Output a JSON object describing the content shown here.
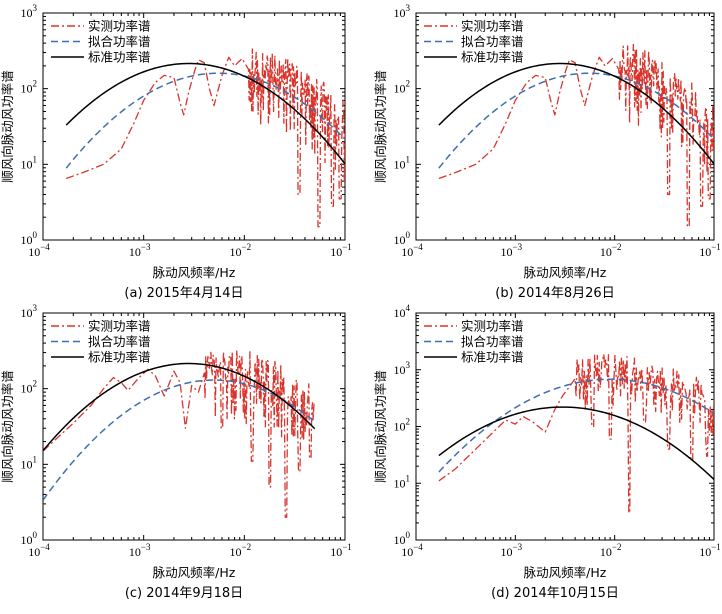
{
  "chart_data": [
    {
      "type": "line",
      "caption": "(a) 2015年4月14日",
      "xlabel": "脉动风频率/Hz",
      "ylabel": "顺风向脉动风功率谱",
      "xscale": "log",
      "yscale": "log",
      "xlim": [
        0.0001,
        0.1
      ],
      "ylim": [
        1,
        1000
      ],
      "xticks": [
        {
          "label_base": "10",
          "label_exp": "−4"
        },
        {
          "label_base": "10",
          "label_exp": "−3"
        },
        {
          "label_base": "10",
          "label_exp": "−2"
        },
        {
          "label_base": "10",
          "label_exp": "−1"
        }
      ],
      "yticks": [
        {
          "label_base": "10",
          "label_exp": "0"
        },
        {
          "label_base": "10",
          "label_exp": "1"
        },
        {
          "label_base": "10",
          "label_exp": "2"
        },
        {
          "label_base": "10",
          "label_exp": "3"
        }
      ],
      "legend_position": "top-left",
      "series": [
        {
          "name": "实测功率谱",
          "style": "dashdot",
          "color": "#d9342b",
          "kind": "measured",
          "points": [
            [
              0.00017,
              6.5
            ],
            [
              0.00025,
              7.8
            ],
            [
              0.0004,
              10
            ],
            [
              0.0006,
              16
            ],
            [
              0.0008,
              35
            ],
            [
              0.001,
              70
            ],
            [
              0.0013,
              120
            ],
            [
              0.0016,
              150
            ],
            [
              0.002,
              140
            ],
            [
              0.0023,
              65
            ],
            [
              0.0025,
              45
            ],
            [
              0.0028,
              90
            ],
            [
              0.0032,
              170
            ],
            [
              0.0035,
              240
            ],
            [
              0.004,
              220
            ],
            [
              0.0045,
              100
            ],
            [
              0.005,
              60
            ],
            [
              0.006,
              150
            ],
            [
              0.007,
              260
            ],
            [
              0.008,
              200
            ],
            [
              0.0095,
              250
            ],
            [
              0.011,
              180
            ]
          ],
          "noise": {
            "fmin": 0.011,
            "fmax": 0.1,
            "center": "fitted",
            "spread": 1.1,
            "mins": [
              [
                0.035,
                4
              ],
              [
                0.055,
                1.5
              ],
              [
                0.075,
                2.8
              ],
              [
                0.09,
                3.5
              ]
            ]
          }
        },
        {
          "name": "拟合功率谱",
          "style": "dashed",
          "color": "#3d6fb0",
          "kind": "model",
          "peak_f": 0.0055,
          "peak_s": 160,
          "k": 0.55
        },
        {
          "name": "标准功率谱",
          "style": "solid",
          "color": "#000000",
          "kind": "model",
          "peak_f": 0.0028,
          "peak_s": 215,
          "k": 0.55
        }
      ]
    },
    {
      "type": "line",
      "caption": "(b) 2014年8月26日",
      "xlabel": "脉动风频率/Hz",
      "ylabel": "顺风向脉动风功率谱",
      "xscale": "log",
      "yscale": "log",
      "xlim": [
        0.0001,
        0.1
      ],
      "ylim": [
        1,
        1000
      ],
      "xticks": [
        {
          "label_base": "10",
          "label_exp": "−4"
        },
        {
          "label_base": "10",
          "label_exp": "−3"
        },
        {
          "label_base": "10",
          "label_exp": "−2"
        },
        {
          "label_base": "10",
          "label_exp": "−1"
        }
      ],
      "yticks": [
        {
          "label_base": "10",
          "label_exp": "0"
        },
        {
          "label_base": "10",
          "label_exp": "1"
        },
        {
          "label_base": "10",
          "label_exp": "2"
        },
        {
          "label_base": "10",
          "label_exp": "3"
        }
      ],
      "legend_position": "top-left",
      "series": [
        {
          "name": "实测功率谱",
          "style": "dashdot",
          "color": "#d9342b",
          "kind": "measured",
          "points": [
            [
              0.00017,
              6.5
            ],
            [
              0.00025,
              7.8
            ],
            [
              0.0004,
              10
            ],
            [
              0.0006,
              16
            ],
            [
              0.0008,
              35
            ],
            [
              0.001,
              70
            ],
            [
              0.0013,
              120
            ],
            [
              0.0016,
              150
            ],
            [
              0.002,
              140
            ],
            [
              0.0023,
              65
            ],
            [
              0.0025,
              45
            ],
            [
              0.0028,
              90
            ],
            [
              0.0032,
              170
            ],
            [
              0.0035,
              240
            ],
            [
              0.004,
              220
            ],
            [
              0.0045,
              100
            ],
            [
              0.005,
              60
            ],
            [
              0.006,
              150
            ],
            [
              0.007,
              260
            ],
            [
              0.008,
              200
            ],
            [
              0.0095,
              250
            ],
            [
              0.011,
              180
            ]
          ],
          "noise": {
            "fmin": 0.011,
            "fmax": 0.1,
            "center": "fitted",
            "spread": 1.1,
            "mins": [
              [
                0.035,
                4
              ],
              [
                0.055,
                1.5
              ],
              [
                0.075,
                2.8
              ],
              [
                0.09,
                3.5
              ]
            ]
          }
        },
        {
          "name": "拟合功率谱",
          "style": "dashed",
          "color": "#3d6fb0",
          "kind": "model",
          "peak_f": 0.0055,
          "peak_s": 160,
          "k": 0.55
        },
        {
          "name": "标准功率谱",
          "style": "solid",
          "color": "#000000",
          "kind": "model",
          "peak_f": 0.0028,
          "peak_s": 215,
          "k": 0.55
        }
      ]
    },
    {
      "type": "line",
      "caption": "(c) 2014年9月18日",
      "xlabel": "脉动风频率/Hz",
      "ylabel": "顺风向脉动风功率谱",
      "xscale": "log",
      "yscale": "log",
      "xlim": [
        0.0001,
        0.1
      ],
      "ylim": [
        1,
        1000
      ],
      "xticks": [
        {
          "label_base": "10",
          "label_exp": "−4"
        },
        {
          "label_base": "10",
          "label_exp": "−3"
        },
        {
          "label_base": "10",
          "label_exp": "−2"
        },
        {
          "label_base": "10",
          "label_exp": "−1"
        }
      ],
      "yticks": [
        {
          "label_base": "10",
          "label_exp": "0"
        },
        {
          "label_base": "10",
          "label_exp": "1"
        },
        {
          "label_base": "10",
          "label_exp": "2"
        },
        {
          "label_base": "10",
          "label_exp": "3"
        }
      ],
      "legend_position": "top-left",
      "series": [
        {
          "name": "实测功率谱",
          "style": "dashdot",
          "color": "#d9342b",
          "kind": "measured",
          "points": [
            [
              0.0001,
              15
            ],
            [
              0.0002,
              35
            ],
            [
              0.0003,
              60
            ],
            [
              0.0004,
              100
            ],
            [
              0.0005,
              140
            ],
            [
              0.0006,
              120
            ],
            [
              0.0007,
              95
            ],
            [
              0.0009,
              140
            ],
            [
              0.0011,
              180
            ],
            [
              0.0013,
              150
            ],
            [
              0.0016,
              80
            ],
            [
              0.002,
              170
            ],
            [
              0.0023,
              120
            ],
            [
              0.0026,
              30
            ],
            [
              0.003,
              110
            ],
            [
              0.0035,
              90
            ],
            [
              0.004,
              160
            ]
          ],
          "noise": {
            "fmin": 0.004,
            "fmax": 0.05,
            "center": "fitted",
            "spread": 0.95,
            "mins": [
              [
                0.006,
                30
              ],
              [
                0.012,
                11
              ],
              [
                0.018,
                5
              ],
              [
                0.026,
                2
              ],
              [
                0.035,
                8
              ],
              [
                0.045,
                12
              ]
            ]
          }
        },
        {
          "name": "拟合功率谱",
          "style": "dashed",
          "color": "#3d6fb0",
          "kind": "model",
          "peak_f": 0.005,
          "peak_s": 130,
          "k": 0.55,
          "xmin": 0.0001,
          "xmax": 0.05
        },
        {
          "name": "标准功率谱",
          "style": "solid",
          "color": "#000000",
          "kind": "model",
          "peak_f": 0.0028,
          "peak_s": 215,
          "k": 0.55,
          "xmin": 0.0001,
          "xmax": 0.05
        }
      ]
    },
    {
      "type": "line",
      "caption": "(d) 2014年10月15日",
      "xlabel": "脉动风频率/Hz",
      "ylabel": "顺风向脉动风功率谱",
      "xscale": "log",
      "yscale": "log",
      "xlim": [
        0.0001,
        0.1
      ],
      "ylim": [
        1,
        10000
      ],
      "xticks": [
        {
          "label_base": "10",
          "label_exp": "−4"
        },
        {
          "label_base": "10",
          "label_exp": "−3"
        },
        {
          "label_base": "10",
          "label_exp": "−2"
        },
        {
          "label_base": "10",
          "label_exp": "−1"
        }
      ],
      "yticks": [
        {
          "label_base": "10",
          "label_exp": "0"
        },
        {
          "label_base": "10",
          "label_exp": "1"
        },
        {
          "label_base": "10",
          "label_exp": "2"
        },
        {
          "label_base": "10",
          "label_exp": "3"
        },
        {
          "label_base": "10",
          "label_exp": "4"
        }
      ],
      "legend_position": "top-left",
      "series": [
        {
          "name": "实测功率谱",
          "style": "dashdot",
          "color": "#d9342b",
          "kind": "measured",
          "points": [
            [
              0.00017,
              11
            ],
            [
              0.00025,
              18
            ],
            [
              0.0004,
              40
            ],
            [
              0.0006,
              80
            ],
            [
              0.0008,
              130
            ],
            [
              0.001,
              110
            ],
            [
              0.0012,
              150
            ],
            [
              0.0015,
              120
            ],
            [
              0.002,
              80
            ],
            [
              0.0025,
              200
            ],
            [
              0.003,
              350
            ],
            [
              0.0035,
              500
            ],
            [
              0.004,
              700
            ]
          ],
          "noise": {
            "fmin": 0.004,
            "fmax": 0.1,
            "center": "fitted",
            "spread": 1.0,
            "mins": [
              [
                0.006,
                100
              ],
              [
                0.009,
                60
              ],
              [
                0.014,
                3
              ],
              [
                0.02,
                120
              ],
              [
                0.035,
                40
              ],
              [
                0.06,
                25
              ],
              [
                0.085,
                30
              ]
            ]
          }
        },
        {
          "name": "拟合功率谱",
          "style": "dashed",
          "color": "#3d6fb0",
          "kind": "model",
          "peak_f": 0.009,
          "peak_s": 680,
          "k": 0.55
        },
        {
          "name": "标准功率谱",
          "style": "solid",
          "color": "#000000",
          "kind": "model",
          "peak_f": 0.003,
          "peak_s": 220,
          "k": 0.55
        }
      ]
    }
  ]
}
